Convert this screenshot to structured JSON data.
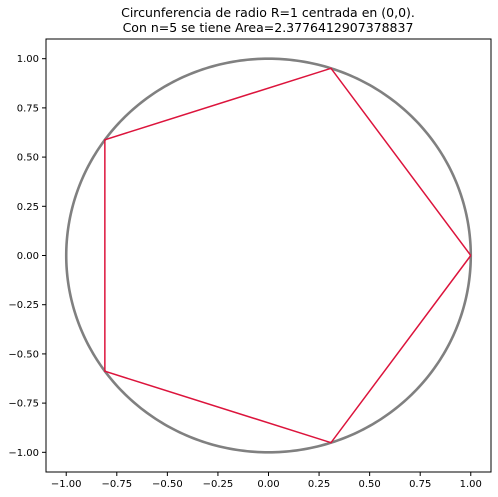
{
  "chart_data": {
    "type": "line",
    "title_lines": [
      "Circunferencia de radio R=1 centrada en (0,0).",
      "Con n=5 se tiene Area=2.3776412907378837"
    ],
    "xlabel": "",
    "ylabel": "",
    "xlim": [
      -1.1,
      1.1
    ],
    "ylim": [
      -1.1,
      1.1
    ],
    "grid": false,
    "x_ticks": [
      -1.0,
      -0.75,
      -0.5,
      -0.25,
      0.0,
      0.25,
      0.5,
      0.75,
      1.0
    ],
    "y_ticks": [
      1.0,
      0.75,
      0.5,
      0.25,
      0.0,
      -0.25,
      -0.5,
      -0.75,
      -1.0
    ],
    "x_tick_labels": [
      "−1.00",
      "−0.75",
      "−0.50",
      "−0.25",
      "0.00",
      "0.25",
      "0.50",
      "0.75",
      "1.00"
    ],
    "y_tick_labels": [
      "1.00",
      "0.75",
      "0.50",
      "0.25",
      "0.00",
      "−0.25",
      "−0.50",
      "−0.75",
      "−1.00"
    ],
    "series": [
      {
        "kind": "circle",
        "center": [
          0,
          0
        ],
        "radius": 1,
        "color": "#808080"
      },
      {
        "kind": "polygon",
        "color": "#dc143c",
        "x": [
          1.0,
          0.309,
          -0.809,
          -0.809,
          0.309,
          1.0
        ],
        "y": [
          0.0,
          0.951,
          0.588,
          -0.588,
          -0.951,
          0.0
        ]
      }
    ]
  }
}
